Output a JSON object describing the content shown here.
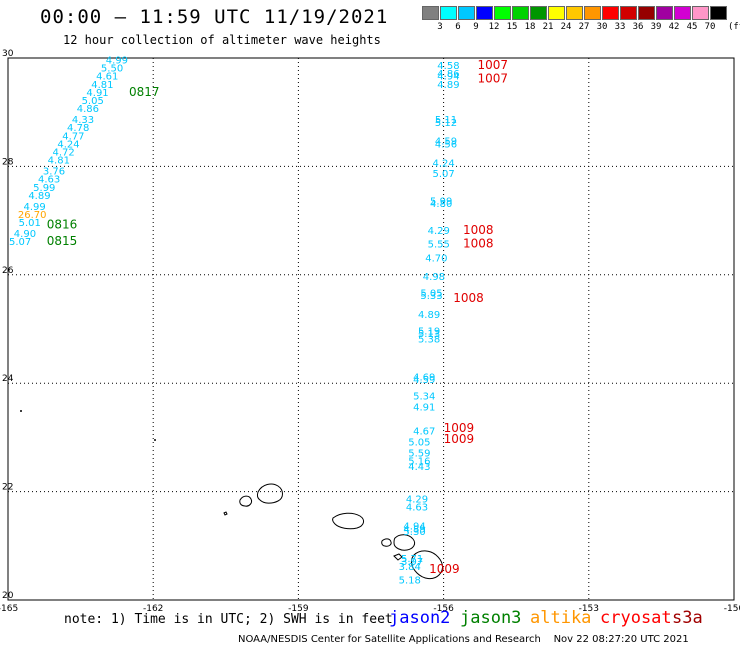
{
  "header": {
    "title": "00:00 – 11:59 UTC 11/19/2021",
    "subtitle": "12 hour collection of altimeter wave heights"
  },
  "colorscale": {
    "colors": [
      "#808080",
      "#00ffff",
      "#00c8ff",
      "#0000ff",
      "#00ff00",
      "#00d200",
      "#009600",
      "#ffff00",
      "#ffc800",
      "#ff9600",
      "#ff0000",
      "#d20000",
      "#960000",
      "#a000a0",
      "#d200d2",
      "#ff96c8",
      "#000000"
    ],
    "labels": [
      "3",
      "6",
      "9",
      "12",
      "15",
      "18",
      "21",
      "24",
      "27",
      "30",
      "33",
      "36",
      "39",
      "42",
      "45",
      "70"
    ],
    "unit": "(ft)"
  },
  "axes": {
    "lon_ticks": [
      "-165",
      "-162",
      "-159",
      "-156",
      "-153",
      "-150"
    ],
    "lat_ticks": [
      "30",
      "28",
      "26",
      "24",
      "22",
      "20"
    ]
  },
  "chart_data": {
    "type": "scatter",
    "x_range": [
      -165,
      -150
    ],
    "y_range": [
      20,
      30
    ],
    "grid": true,
    "series": [
      {
        "color": "#00c8ff",
        "points": [
          {
            "lon": -162.75,
            "lat": 29.9,
            "label": "4.99"
          },
          {
            "lon": -162.85,
            "lat": 29.75,
            "label": "5.50"
          },
          {
            "lon": -162.95,
            "lat": 29.6,
            "label": "4.61"
          },
          {
            "lon": -163.05,
            "lat": 29.45,
            "label": "4.81"
          },
          {
            "lon": -163.15,
            "lat": 29.3,
            "label": "4.91"
          },
          {
            "lon": -163.25,
            "lat": 29.15,
            "label": "5.05"
          },
          {
            "lon": -163.35,
            "lat": 29.0,
            "label": "4.86"
          },
          {
            "lon": -163.45,
            "lat": 28.8,
            "label": "4.33"
          },
          {
            "lon": -163.55,
            "lat": 28.65,
            "label": "4.78"
          },
          {
            "lon": -163.65,
            "lat": 28.5,
            "label": "4.77"
          },
          {
            "lon": -163.75,
            "lat": 28.35,
            "label": "4.24"
          },
          {
            "lon": -163.85,
            "lat": 28.2,
            "label": "4.72"
          },
          {
            "lon": -163.95,
            "lat": 28.05,
            "label": "4.81"
          },
          {
            "lon": -164.05,
            "lat": 27.85,
            "label": "3.76"
          },
          {
            "lon": -164.15,
            "lat": 27.7,
            "label": "4.63"
          },
          {
            "lon": -164.25,
            "lat": 27.55,
            "label": "5.99"
          },
          {
            "lon": -164.35,
            "lat": 27.4,
            "label": "4.89"
          },
          {
            "lon": -164.45,
            "lat": 27.2,
            "label": "4.99"
          },
          {
            "lon": -164.55,
            "lat": 26.9,
            "label": "5.01"
          },
          {
            "lon": -164.65,
            "lat": 26.7,
            "label": "4.90"
          },
          {
            "lon": -164.75,
            "lat": 26.55,
            "label": "5.07"
          },
          {
            "lon": -155.9,
            "lat": 29.8,
            "label": "4.58"
          },
          {
            "lon": -155.9,
            "lat": 29.65,
            "label": "4.86"
          },
          {
            "lon": -155.9,
            "lat": 29.6,
            "label": "4.94"
          },
          {
            "lon": -155.9,
            "lat": 29.45,
            "label": "4.89"
          },
          {
            "lon": -155.95,
            "lat": 28.8,
            "label": "5.11"
          },
          {
            "lon": -155.95,
            "lat": 28.75,
            "label": "5.12"
          },
          {
            "lon": -155.95,
            "lat": 28.4,
            "label": "4.59"
          },
          {
            "lon": -155.95,
            "lat": 28.35,
            "label": "4.56"
          },
          {
            "lon": -156.0,
            "lat": 28.0,
            "label": "4.24"
          },
          {
            "lon": -156.0,
            "lat": 27.8,
            "label": "5.07"
          },
          {
            "lon": -156.05,
            "lat": 27.3,
            "label": "5.99"
          },
          {
            "lon": -156.05,
            "lat": 27.25,
            "label": "4.80"
          },
          {
            "lon": -156.1,
            "lat": 26.75,
            "label": "4.29"
          },
          {
            "lon": -156.1,
            "lat": 26.5,
            "label": "5.55"
          },
          {
            "lon": -156.15,
            "lat": 26.25,
            "label": "4.70"
          },
          {
            "lon": -156.2,
            "lat": 25.9,
            "label": "4.98"
          },
          {
            "lon": -156.25,
            "lat": 25.6,
            "label": "5.05"
          },
          {
            "lon": -156.25,
            "lat": 25.55,
            "label": "5.33"
          },
          {
            "lon": -156.3,
            "lat": 25.2,
            "label": "4.89"
          },
          {
            "lon": -156.3,
            "lat": 24.9,
            "label": "5.19"
          },
          {
            "lon": -156.3,
            "lat": 24.85,
            "label": "5.13"
          },
          {
            "lon": -156.3,
            "lat": 24.75,
            "label": "5.38"
          },
          {
            "lon": -156.4,
            "lat": 24.05,
            "label": "4.69"
          },
          {
            "lon": -156.4,
            "lat": 24.0,
            "label": "4.59"
          },
          {
            "lon": -156.4,
            "lat": 23.7,
            "label": "5.34"
          },
          {
            "lon": -156.4,
            "lat": 23.5,
            "label": "4.91"
          },
          {
            "lon": -156.4,
            "lat": 23.05,
            "label": "4.67"
          },
          {
            "lon": -156.5,
            "lat": 22.85,
            "label": "5.05"
          },
          {
            "lon": -156.5,
            "lat": 22.65,
            "label": "5.59"
          },
          {
            "lon": -156.5,
            "lat": 22.5,
            "label": "5.16"
          },
          {
            "lon": -156.5,
            "lat": 22.4,
            "label": "4.43"
          },
          {
            "lon": -156.55,
            "lat": 21.8,
            "label": "4.29"
          },
          {
            "lon": -156.55,
            "lat": 21.65,
            "label": "4.63"
          },
          {
            "lon": -156.6,
            "lat": 21.3,
            "label": "4.94"
          },
          {
            "lon": -156.6,
            "lat": 21.25,
            "label": "4.89"
          },
          {
            "lon": -156.6,
            "lat": 21.2,
            "label": "5.30"
          },
          {
            "lon": -156.65,
            "lat": 20.7,
            "label": "5.71"
          },
          {
            "lon": -156.65,
            "lat": 20.65,
            "label": "3.97"
          },
          {
            "lon": -156.7,
            "lat": 20.55,
            "label": "3.84"
          },
          {
            "lon": -156.7,
            "lat": 20.3,
            "label": "5.18"
          }
        ]
      },
      {
        "color": "#ffa500",
        "points": [
          {
            "lon": -164.5,
            "lat": 27.05,
            "label": "26.70"
          }
        ]
      }
    ],
    "annotations": [
      {
        "lon": -162.5,
        "lat": 29.3,
        "text": "0817",
        "color": "#008000"
      },
      {
        "lon": -164.2,
        "lat": 26.85,
        "text": "0816",
        "color": "#008000"
      },
      {
        "lon": -164.2,
        "lat": 26.55,
        "text": "0815",
        "color": "#008000"
      },
      {
        "lon": -155.3,
        "lat": 29.8,
        "text": "1007",
        "color": "#e00000"
      },
      {
        "lon": -155.3,
        "lat": 29.55,
        "text": "1007",
        "color": "#e00000"
      },
      {
        "lon": -155.6,
        "lat": 26.75,
        "text": "1008",
        "color": "#e00000"
      },
      {
        "lon": -155.6,
        "lat": 26.5,
        "text": "1008",
        "color": "#e00000"
      },
      {
        "lon": -155.8,
        "lat": 25.5,
        "text": "1008",
        "color": "#e00000"
      },
      {
        "lon": -156.0,
        "lat": 23.1,
        "text": "1009",
        "color": "#e00000"
      },
      {
        "lon": -156.0,
        "lat": 22.9,
        "text": "1009",
        "color": "#e00000"
      },
      {
        "lon": -156.3,
        "lat": 20.5,
        "text": "1009",
        "color": "#e00000"
      }
    ]
  },
  "footer": {
    "note": "note: 1) Time is in UTC; 2) SWH is in feet",
    "legend": [
      {
        "label": "jason2",
        "color": "#0000ff"
      },
      {
        "label": "jason3",
        "color": "#008000"
      },
      {
        "label": "altika",
        "color": "#ff9600"
      },
      {
        "label": "cryosat",
        "color": "#ff0000"
      },
      {
        "label": "s3a",
        "color": "#a00000"
      }
    ],
    "credit": "NOAA/NESDIS Center for Satellite Applications and Research    Nov 22 08:27:20 UTC 2021"
  }
}
